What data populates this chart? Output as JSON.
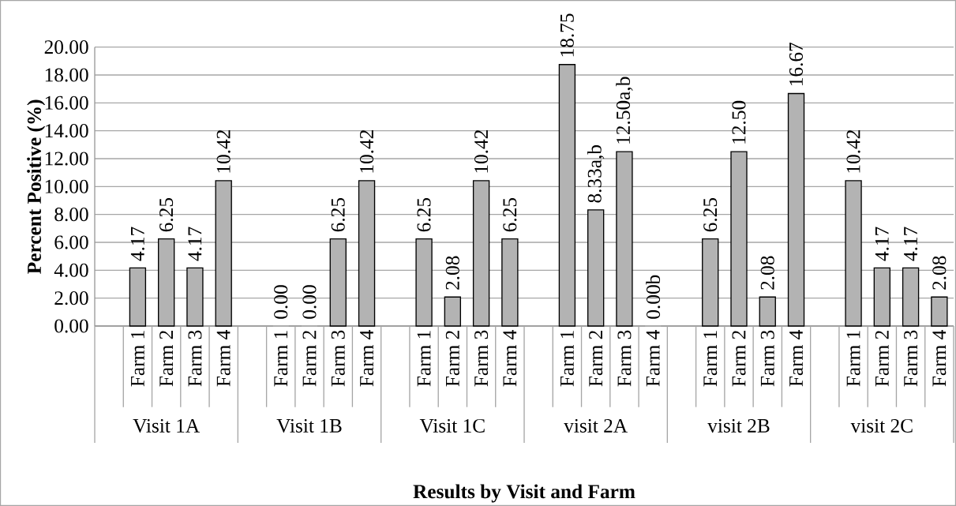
{
  "chart_data": {
    "type": "bar",
    "xlabel": "Results by Visit and Farm",
    "ylabel": "Percent Positive (%)",
    "categories": [
      null,
      "Farm 1",
      "Farm 2",
      "Farm 3",
      "Farm 4",
      null,
      "Farm 1",
      "Farm 2",
      "Farm 3",
      "Farm 4",
      null,
      "Farm 1",
      "Farm 2",
      "Farm 3",
      "Farm 4",
      null,
      "Farm 1",
      "Farm 2",
      "Farm 3",
      "Farm 4",
      null,
      "Farm 1",
      "Farm 2",
      "Farm 3",
      "Farm 4",
      null,
      "Farm 1",
      "Farm 2",
      "Farm 3",
      "Farm 4"
    ],
    "values": [
      null,
      4.17,
      6.25,
      4.17,
      10.42,
      null,
      0,
      0,
      6.25,
      10.42,
      null,
      6.25,
      2.08,
      10.42,
      6.25,
      null,
      18.75,
      8.33,
      12.5,
      0,
      null,
      6.25,
      12.5,
      2.08,
      16.67,
      null,
      10.42,
      4.17,
      4.17,
      2.08
    ],
    "value_labels": [
      null,
      "4.17",
      "6.25",
      "4.17",
      "10.42",
      null,
      "0.00",
      "0.00",
      "6.25",
      "10.42",
      null,
      "6.25",
      "2.08",
      "10.42",
      "6.25",
      null,
      "18.75",
      "8.33a,b",
      "12.50a,b",
      "0.00b",
      null,
      "6.25",
      "12.50",
      "2.08",
      "16.67",
      null,
      "10.42",
      "4.17",
      "4.17",
      "2.08"
    ],
    "annotations": [
      "Visit 1A",
      "Visit 1B",
      "Visit 1C",
      "visit 2A",
      "visit 2B",
      "visit 2C"
    ],
    "color": "#b3b3b3",
    "ylim": [
      0,
      20
    ],
    "yticks": [
      {
        "value": 0,
        "label": "0.00"
      },
      {
        "value": 2,
        "label": "2.00"
      },
      {
        "value": 4,
        "label": "4.00"
      },
      {
        "value": 6,
        "label": "6.00"
      },
      {
        "value": 8,
        "label": "8.00"
      },
      {
        "value": 10,
        "label": "10.00"
      },
      {
        "value": 12,
        "label": "12.00"
      },
      {
        "value": 14,
        "label": "14.00"
      },
      {
        "value": 16,
        "label": "16.00"
      },
      {
        "value": 18,
        "label": "18.00"
      },
      {
        "value": 20,
        "label": "20.00"
      }
    ],
    "grid": "y"
  }
}
